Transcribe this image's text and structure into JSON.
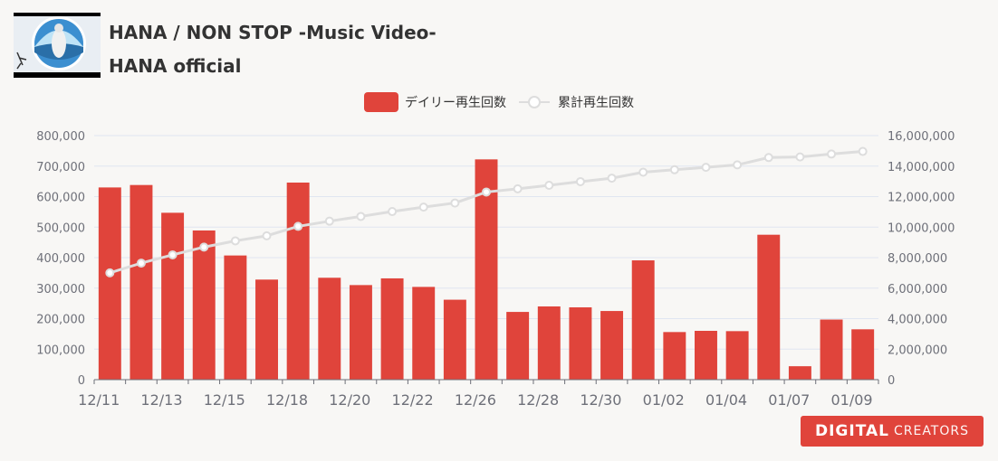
{
  "header": {
    "title": "HANA / NON STOP -Music Video-",
    "channel": "HANA official"
  },
  "legend": {
    "daily_label": "デイリー再生回数",
    "cumulative_label": "累計再生回数"
  },
  "brand": {
    "part1": "DIGITAL",
    "part2": "CREATORS"
  },
  "colors": {
    "bar": "#e0443b",
    "line": "#dddddd",
    "grid": "#e0e6f1",
    "axis_text": "#6e7079"
  },
  "chart_data": {
    "type": "bar",
    "x": [
      "12/11",
      "12/12",
      "12/13",
      "12/14",
      "12/15",
      "12/16",
      "12/18",
      "12/19",
      "12/20",
      "12/21",
      "12/22",
      "12/23",
      "12/26",
      "12/27",
      "12/28",
      "12/29",
      "12/30",
      "12/31",
      "01/02",
      "01/03",
      "01/04",
      "01/05",
      "01/07",
      "01/08",
      "01/09"
    ],
    "x_tick_labels": [
      "12/11",
      "12/13",
      "12/15",
      "12/18",
      "12/20",
      "12/22",
      "12/26",
      "12/28",
      "12/30",
      "01/02",
      "01/04",
      "01/07",
      "01/09"
    ],
    "series": [
      {
        "name": "デイリー再生回数",
        "type": "bar",
        "axis": "left",
        "values": [
          630000,
          638000,
          547000,
          489000,
          407000,
          328000,
          646000,
          334000,
          310000,
          332000,
          304000,
          262000,
          722000,
          222000,
          240000,
          237000,
          225000,
          391000,
          156000,
          160000,
          159000,
          475000,
          44000,
          197000,
          165000
        ]
      },
      {
        "name": "累計再生回数",
        "type": "line",
        "axis": "right",
        "values": [
          7000000,
          7640000,
          8180000,
          8690000,
          9100000,
          9430000,
          10050000,
          10390000,
          10700000,
          11020000,
          11310000,
          11580000,
          12300000,
          12510000,
          12740000,
          12980000,
          13210000,
          13600000,
          13760000,
          13920000,
          14080000,
          14560000,
          14600000,
          14790000,
          14960000
        ]
      }
    ],
    "y_left": {
      "range": [
        0,
        800000
      ],
      "ticks": [
        "0",
        "100,000",
        "200,000",
        "300,000",
        "400,000",
        "500,000",
        "600,000",
        "700,000",
        "800,000"
      ]
    },
    "y_right": {
      "range": [
        0,
        16000000
      ],
      "ticks": [
        "0",
        "2,000,000",
        "4,000,000",
        "6,000,000",
        "8,000,000",
        "10,000,000",
        "12,000,000",
        "14,000,000",
        "16,000,000"
      ]
    },
    "grid": true,
    "legend_position": "top-center"
  }
}
